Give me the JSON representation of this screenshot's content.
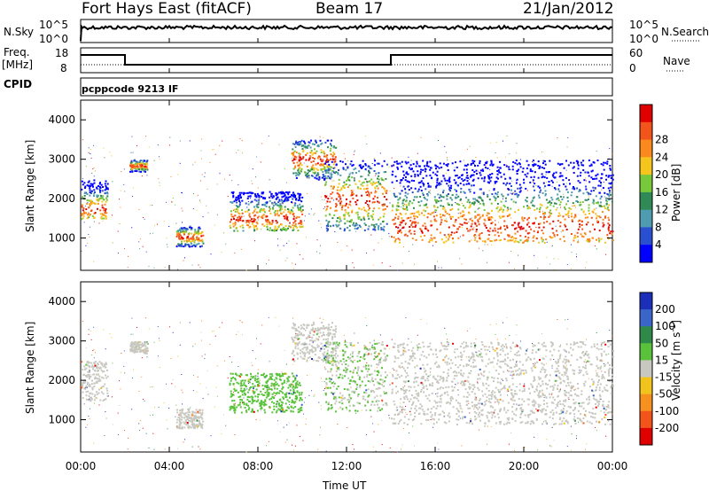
{
  "header": {
    "station": "Fort Hays East (fitACF)",
    "beam": "Beam 17",
    "date": "21/Jan/2012"
  },
  "strips": {
    "nsky_label": "N.Sky",
    "nsky_ticks": [
      "10^5",
      "10^0"
    ],
    "nsearch_label": "N.Search",
    "nsearch_ticks": [
      "10^5",
      "10^0"
    ],
    "freq_label_1": "Freq.",
    "freq_label_2": "[MHz]",
    "freq_ticks": [
      "18",
      "8"
    ],
    "nave_label": "Nave",
    "nave_ticks": [
      "60",
      "0"
    ],
    "cpid_label": "CPID",
    "cpid_value": "pcppcode 9213 IF"
  },
  "chart_data": [
    {
      "type": "heatmap",
      "name": "power",
      "ylabel": "Slant Range [km]",
      "xlabel": "Time UT",
      "xlim": [
        0,
        24
      ],
      "ylim": [
        180,
        4500
      ],
      "yticks": [
        "1000",
        "2000",
        "3000",
        "4000"
      ],
      "xticks": [
        "00:00",
        "04:00",
        "08:00",
        "12:00",
        "16:00",
        "20:00",
        "00:00"
      ],
      "colorbar": {
        "label": "Power [dB]",
        "ticks": [
          "4",
          "8",
          "12",
          "16",
          "20",
          "24",
          "28"
        ],
        "colors": [
          "#0000ff",
          "#2a4fd0",
          "#4f9cb0",
          "#2f8a55",
          "#78c83c",
          "#f6c51d",
          "#fb8a1e",
          "#f2541c",
          "#e00000"
        ]
      },
      "echo_regions": [
        {
          "t0": 0.0,
          "t1": 1.2,
          "r0": 1500,
          "r1": 2500,
          "core": 1750
        },
        {
          "t0": 2.2,
          "t1": 3.0,
          "r0": 2700,
          "r1": 3000,
          "core": 2850
        },
        {
          "t0": 4.3,
          "t1": 5.5,
          "r0": 800,
          "r1": 1300,
          "core": 1050
        },
        {
          "t0": 6.7,
          "t1": 10.0,
          "r0": 1200,
          "r1": 2200,
          "core": 1500
        },
        {
          "t0": 9.5,
          "t1": 11.5,
          "r0": 2500,
          "r1": 3500,
          "core": 3000
        },
        {
          "t0": 11.0,
          "t1": 13.8,
          "r0": 1200,
          "r1": 3000,
          "core": 2000
        },
        {
          "t0": 14.0,
          "t1": 24.0,
          "r0": 900,
          "r1": 3000,
          "core": 1300
        }
      ]
    },
    {
      "type": "heatmap",
      "name": "velocity",
      "ylabel": "Slant Range [km]",
      "xlabel": "Time UT",
      "xlim": [
        0,
        24
      ],
      "ylim": [
        180,
        4500
      ],
      "yticks": [
        "1000",
        "2000",
        "3000",
        "4000"
      ],
      "xticks": [
        "00:00",
        "04:00",
        "08:00",
        "12:00",
        "16:00",
        "20:00",
        "00:00"
      ],
      "colorbar": {
        "label": "Velocity [m s",
        "label_sup": "-1",
        "label_end": "]",
        "ticks": [
          "200",
          "100",
          "50",
          "15",
          "-15",
          "-50",
          "-100",
          "-200"
        ],
        "colors": [
          "#1c2fb8",
          "#3a66c9",
          "#2f8a4a",
          "#59c23a",
          "#c8c8c0",
          "#f2c21d",
          "#f6901e",
          "#f2541c",
          "#e00000"
        ]
      },
      "echo_regions": [
        {
          "t0": 0.0,
          "t1": 1.2,
          "r0": 1500,
          "r1": 2500,
          "v": -5
        },
        {
          "t0": 2.2,
          "t1": 3.0,
          "r0": 2700,
          "r1": 3000,
          "v": 0
        },
        {
          "t0": 4.3,
          "t1": 5.5,
          "r0": 800,
          "r1": 1300,
          "v": 0
        },
        {
          "t0": 6.7,
          "t1": 10.0,
          "r0": 1200,
          "r1": 2200,
          "v": 40
        },
        {
          "t0": 9.5,
          "t1": 11.5,
          "r0": 2500,
          "r1": 3500,
          "v": 0
        },
        {
          "t0": 11.0,
          "t1": 13.8,
          "r0": 1200,
          "r1": 3000,
          "v": 20
        },
        {
          "t0": 14.0,
          "t1": 24.0,
          "r0": 900,
          "r1": 3000,
          "v": -5
        }
      ]
    }
  ]
}
